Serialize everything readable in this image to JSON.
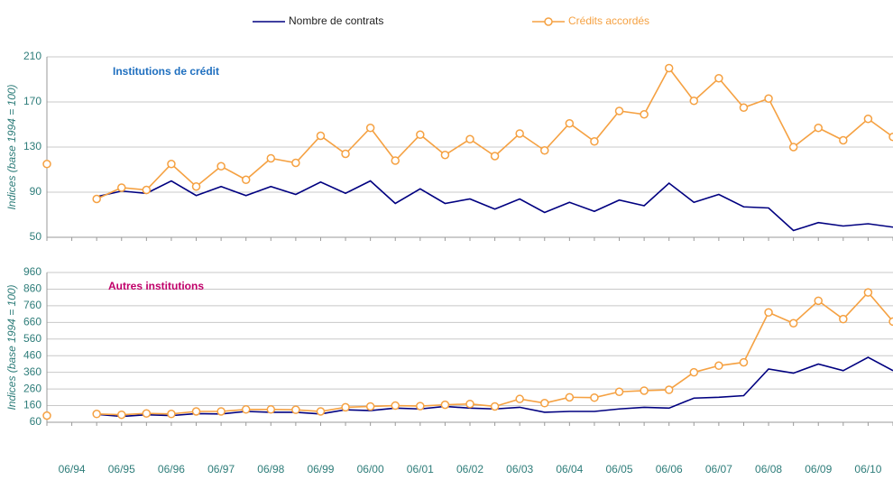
{
  "chart_data": [
    {
      "type": "line",
      "subtitle": "Institutions de crédit",
      "ylabel": "Indices (base 1994 = 100)",
      "ylim": [
        50,
        210
      ],
      "yticks": [
        50,
        90,
        130,
        170,
        210
      ],
      "grid": true,
      "series": [
        {
          "name": "Nombre de contrats",
          "color": "#000080",
          "marker": false,
          "values": [
            115,
            null,
            86,
            91,
            89,
            100,
            87,
            95,
            87,
            95,
            88,
            99,
            89,
            100,
            80,
            93,
            80,
            84,
            75,
            84,
            72,
            81,
            73,
            83,
            78,
            98,
            81,
            88,
            77,
            76,
            56,
            63,
            60,
            62,
            59
          ]
        },
        {
          "name": "Crédits accordés",
          "color": "#f5a142",
          "marker": true,
          "values": [
            115,
            null,
            84,
            94,
            92,
            115,
            95,
            113,
            101,
            120,
            116,
            140,
            124,
            147,
            118,
            141,
            123,
            137,
            122,
            142,
            127,
            151,
            135,
            162,
            159,
            200,
            171,
            191,
            165,
            173,
            130,
            147,
            136,
            155,
            139
          ]
        }
      ]
    },
    {
      "type": "line",
      "subtitle": "Autres institutions",
      "ylabel": "Indices (base 1994 = 100)",
      "ylim": [
        60,
        960
      ],
      "yticks": [
        60,
        160,
        260,
        360,
        460,
        560,
        660,
        760,
        860,
        960
      ],
      "grid": true,
      "categories": [
        null,
        "06/94",
        null,
        "06/95",
        null,
        "06/96",
        null,
        "06/97",
        null,
        "06/98",
        null,
        "06/99",
        null,
        "06/00",
        null,
        "06/01",
        null,
        "06/02",
        null,
        "06/03",
        null,
        "06/04",
        null,
        "06/05",
        null,
        "06/06",
        null,
        "06/07",
        null,
        "06/08",
        null,
        "06/09",
        null,
        "06/10",
        null
      ],
      "series": [
        {
          "color": "#000080",
          "marker": false,
          "values": [
            100,
            null,
            108,
            95,
            105,
            100,
            112,
            110,
            125,
            120,
            120,
            110,
            135,
            130,
            145,
            140,
            155,
            145,
            140,
            150,
            120,
            125,
            125,
            140,
            150,
            145,
            205,
            210,
            220,
            380,
            355,
            410,
            370,
            450,
            370
          ]
        },
        {
          "color": "#f5a142",
          "marker": true,
          "values": [
            100,
            null,
            110,
            105,
            113,
            110,
            125,
            125,
            137,
            137,
            135,
            125,
            150,
            155,
            160,
            157,
            165,
            170,
            155,
            200,
            175,
            210,
            208,
            243,
            250,
            255,
            360,
            400,
            420,
            720,
            655,
            790,
            680,
            840,
            665
          ]
        }
      ]
    }
  ]
}
